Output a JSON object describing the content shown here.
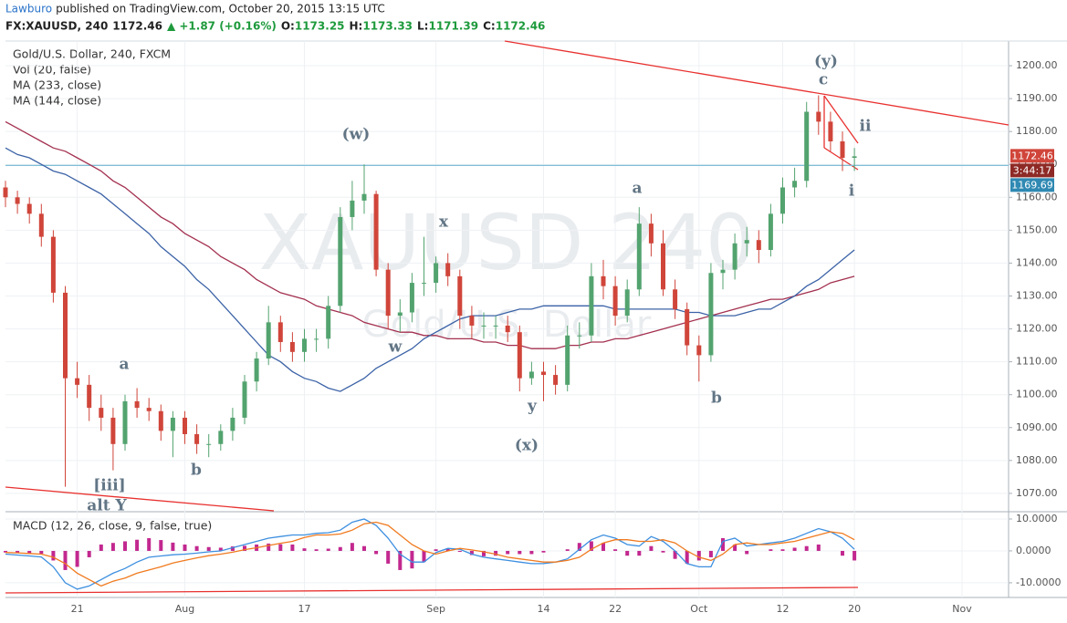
{
  "header": {
    "author": "Lawburo",
    "published": "published on TradingView.com, October 20, 2015 13:15 UTC",
    "symbol": "FX:XAUUSD, 240",
    "last": "1172.46",
    "change": "▲ +1.87 (+0.16%)",
    "ohlc": [
      {
        "label": "O:",
        "value": "1173.25"
      },
      {
        "label": "H:",
        "value": "1173.33"
      },
      {
        "label": "L:",
        "value": "1171.39"
      },
      {
        "label": "C:",
        "value": "1172.46"
      }
    ]
  },
  "chart_data": [
    {
      "type": "candlestick",
      "title": "Gold/U.S. Dollar, 240, FXCM",
      "volume_label": "Vol (20, false)",
      "watermark": [
        "XAUUSD 240",
        "Gold/U.S. Dollar"
      ],
      "categories": [
        null,
        null,
        null,
        null,
        null,
        null,
        "21",
        null,
        null,
        null,
        null,
        null,
        null,
        null,
        null,
        "Aug",
        null,
        null,
        null,
        null,
        null,
        null,
        null,
        null,
        null,
        "17",
        null,
        null,
        null,
        null,
        null,
        null,
        null,
        null,
        null,
        null,
        "Sep",
        null,
        null,
        null,
        null,
        null,
        null,
        null,
        null,
        "14",
        null,
        null,
        null,
        null,
        null,
        "22",
        null,
        null,
        null,
        null,
        null,
        null,
        "Oct",
        null,
        null,
        null,
        null,
        null,
        null,
        "12",
        null,
        null,
        null,
        null,
        null,
        "20",
        null,
        null,
        null,
        null,
        null,
        null,
        null,
        null,
        "Nov",
        null,
        null,
        null
      ],
      "open": [
        1163,
        1160,
        1158,
        1155,
        1148,
        1131,
        1105,
        1103,
        1096,
        1093,
        1085,
        1098,
        1096,
        1095,
        1089,
        1093,
        1088,
        1085,
        1085,
        1089,
        1093,
        1104,
        1111,
        1122,
        1116,
        1113,
        1117,
        1117,
        1127,
        1154,
        1159,
        1161,
        1138,
        1124,
        1125,
        1134,
        1134,
        1140,
        1136,
        1124,
        1121,
        1121,
        1121,
        1119,
        1105,
        1107,
        1106,
        1103,
        1118,
        1118,
        1136,
        1133,
        1124,
        1132,
        1152,
        1146,
        1132,
        1126,
        1115,
        1112,
        1137,
        1138,
        1146,
        1147,
        1144,
        1155,
        1163,
        1165,
        1186,
        1183,
        1177,
        1172,
        null,
        null,
        null,
        null,
        null,
        null,
        null,
        null,
        null,
        null,
        null,
        null
      ],
      "high": [
        1165,
        1162,
        1160,
        1158,
        1150,
        1133,
        1110,
        1106,
        1100,
        1096,
        1100,
        1102,
        1099,
        1097,
        1095,
        1095,
        1091,
        1088,
        1091,
        1096,
        1106,
        1113,
        1127,
        1124,
        1119,
        1120,
        1120,
        1130,
        1157,
        1165,
        1170,
        1162,
        1140,
        1129,
        1137,
        1148,
        1142,
        1143,
        1138,
        1127,
        1125,
        1124,
        1124,
        1121,
        1110,
        1110,
        1109,
        1121,
        1122,
        1140,
        1141,
        1136,
        1135,
        1157,
        1155,
        1150,
        1135,
        1128,
        1118,
        1140,
        1141,
        1149,
        1151,
        1150,
        1158,
        1166,
        1169,
        1189,
        1191,
        1186,
        1180,
        1175,
        null,
        null,
        null,
        null,
        null,
        null,
        null,
        null,
        null,
        null,
        null,
        null
      ],
      "low": [
        1157,
        1155,
        1152,
        1145,
        1128,
        1072,
        1099,
        1092,
        1089,
        1077,
        1083,
        1093,
        1092,
        1086,
        1081,
        1085,
        1082,
        1081,
        1083,
        1086,
        1091,
        1101,
        1109,
        1113,
        1110,
        1110,
        1113,
        1114,
        1125,
        1150,
        1155,
        1136,
        1120,
        1119,
        1122,
        1130,
        1131,
        1133,
        1120,
        1117,
        1117,
        1117,
        1116,
        1101,
        1103,
        1098,
        1100,
        1101,
        1114,
        1116,
        1129,
        1121,
        1122,
        1130,
        1142,
        1130,
        1123,
        1112,
        1104,
        1110,
        1132,
        1135,
        1142,
        1140,
        1142,
        1152,
        1160,
        1163,
        1179,
        1174,
        1168,
        1168,
        null,
        null,
        null,
        null,
        null,
        null,
        null,
        null,
        null,
        null,
        null,
        null
      ],
      "close": [
        1160,
        1158,
        1155,
        1148,
        1131,
        1105,
        1103,
        1096,
        1093,
        1085,
        1098,
        1096,
        1095,
        1089,
        1093,
        1088,
        1085,
        1085,
        1089,
        1093,
        1104,
        1111,
        1122,
        1116,
        1113,
        1117,
        1117,
        1127,
        1154,
        1159,
        1161,
        1138,
        1124,
        1125,
        1134,
        1134,
        1140,
        1136,
        1124,
        1121,
        1121,
        1121,
        1119,
        1105,
        1107,
        1106,
        1103,
        1118,
        1118,
        1136,
        1133,
        1124,
        1132,
        1152,
        1146,
        1132,
        1126,
        1115,
        1112,
        1137,
        1138,
        1146,
        1147,
        1144,
        1155,
        1163,
        1165,
        1186,
        1183,
        1177,
        1172,
        1172.46,
        null,
        null,
        null,
        null,
        null,
        null,
        null,
        null,
        null,
        null,
        null,
        null
      ],
      "up_color": "#53a36f",
      "down_color": "#d0453a",
      "series": [
        {
          "name": "MA (233, close)",
          "color": "#a3304f",
          "values": [
            1183,
            1181,
            1179,
            1177,
            1175,
            1174,
            1172,
            1170,
            1168,
            1165,
            1163,
            1160,
            1157,
            1154,
            1152,
            1149,
            1147,
            1145,
            1142,
            1140,
            1138,
            1135,
            1133,
            1131,
            1130,
            1129,
            1127,
            1126,
            1125,
            1124,
            1122,
            1121,
            1120,
            1119,
            1119,
            1118,
            1118,
            1117,
            1117,
            1117,
            1116,
            1116,
            1115,
            1115,
            1114,
            1114,
            1114,
            1115,
            1115,
            1116,
            1116,
            1117,
            1117,
            1118,
            1119,
            1120,
            1121,
            1122,
            1123,
            1124,
            1125,
            1126,
            1127,
            1128,
            1129,
            1129,
            1130,
            1131,
            1132,
            1134,
            1135,
            1136,
            null,
            null,
            null,
            null,
            null,
            null,
            null,
            null,
            null,
            null,
            null,
            null
          ]
        },
        {
          "name": "MA (144, close)",
          "color": "#3b62a6",
          "values": [
            1175,
            1173,
            1172,
            1170,
            1168,
            1167,
            1165,
            1163,
            1161,
            1158,
            1155,
            1152,
            1149,
            1145,
            1142,
            1139,
            1135,
            1132,
            1128,
            1124,
            1120,
            1116,
            1112,
            1110,
            1107,
            1105,
            1104,
            1102,
            1101,
            1103,
            1105,
            1108,
            1110,
            1112,
            1114,
            1117,
            1119,
            1121,
            1123,
            1124,
            1124,
            1124,
            1125,
            1126,
            1126,
            1127,
            1127,
            1127,
            1127,
            1127,
            1127,
            1126,
            1126,
            1126,
            1126,
            1126,
            1126,
            1125,
            1125,
            1124,
            1124,
            1124,
            1125,
            1126,
            1126,
            1128,
            1130,
            1133,
            1135,
            1138,
            1141,
            1144,
            null,
            null,
            null,
            null,
            null,
            null,
            null,
            null,
            null,
            null,
            null,
            null
          ]
        }
      ],
      "price_line": 1169.69,
      "price_line_color": "#7fbfd6",
      "last_price": 1172.46,
      "countdown": "3:44:17",
      "annotations": [
        "(y)",
        "c",
        "ii",
        "i",
        "(w)",
        "x",
        "a",
        "w",
        "y",
        "(x)",
        "b",
        "a",
        "b",
        "[iii]",
        "alt Y"
      ],
      "ylim": [
        1064.7,
        1207.5
      ],
      "yticks": [
        {
          "value": 1070,
          "label": "1070.00"
        },
        {
          "value": 1080,
          "label": "1080.00"
        },
        {
          "value": 1090,
          "label": "1090.00"
        },
        {
          "value": 1100,
          "label": "1100.00"
        },
        {
          "value": 1110,
          "label": "1110.00"
        },
        {
          "value": 1120,
          "label": "1120.00"
        },
        {
          "value": 1130,
          "label": "1130.00"
        },
        {
          "value": 1140,
          "label": "1140.00"
        },
        {
          "value": 1150,
          "label": "1150.00"
        },
        {
          "value": 1160,
          "label": "1160.00"
        },
        {
          "value": 1170,
          "label": "1170.00"
        },
        {
          "value": 1180,
          "label": "1180.00"
        },
        {
          "value": 1190,
          "label": "1190.00"
        },
        {
          "value": 1200,
          "label": "1200.00"
        }
      ],
      "grid": true
    },
    {
      "type": "macd",
      "title": "MACD (12, 26, close, 9, false, true)",
      "histogram": {
        "color": "#c2288f",
        "values": [
          -0.5,
          -0.7,
          -0.8,
          -0.9,
          -3,
          -6,
          -5,
          -2,
          2,
          2.5,
          3,
          3.5,
          4,
          3.4,
          2.6,
          2,
          1.5,
          1.2,
          1,
          1.4,
          1.6,
          2,
          2.3,
          2.1,
          2,
          0.8,
          0.5,
          0.7,
          1.2,
          2.5,
          1.5,
          -1,
          -4,
          -6,
          -5.5,
          -3.5,
          0.5,
          0.8,
          -0.3,
          -1.3,
          -1.7,
          -1.5,
          -1,
          -1,
          -1,
          -0.5,
          0,
          0.5,
          2.5,
          3,
          2.5,
          0.5,
          -1.5,
          -1.5,
          1.5,
          -0.5,
          -2.5,
          -4,
          -3,
          -2,
          4,
          2,
          -1,
          0,
          0.5,
          0.5,
          1,
          1.5,
          2,
          0,
          -1.5,
          -3,
          null,
          null,
          null,
          null,
          null,
          null,
          null,
          null,
          null,
          null,
          null,
          null
        ]
      },
      "lines": [
        {
          "color": "#3d8fe0",
          "values": [
            -1,
            -1.3,
            -1.6,
            -1.9,
            -5,
            -10,
            -12,
            -11,
            -9,
            -7,
            -5.5,
            -3.5,
            -2,
            -1.6,
            -1.2,
            -1,
            -0.7,
            -0.3,
            0,
            1,
            2,
            3,
            4,
            4.5,
            5,
            5,
            5.5,
            5.7,
            6.5,
            9,
            10,
            8,
            4,
            -1,
            -3.5,
            -3.5,
            -0.5,
            0.8,
            0.5,
            -1,
            -2,
            -2.5,
            -3,
            -3.5,
            -4,
            -4,
            -3.5,
            -2.5,
            0.5,
            3.5,
            5,
            4,
            2,
            1.5,
            4.5,
            3,
            0,
            -4,
            -5,
            -5,
            3,
            4,
            1.5,
            2,
            2.5,
            3,
            4,
            5.5,
            7,
            6,
            4,
            0.5,
            null,
            null,
            null,
            null,
            null,
            null,
            null,
            null,
            null,
            null,
            null,
            null
          ]
        },
        {
          "color": "#f07a1f",
          "values": [
            -0.5,
            -0.6,
            -0.8,
            -1,
            -2,
            -4,
            -7,
            -9,
            -11,
            -9.5,
            -8.5,
            -7,
            -6,
            -5,
            -3.8,
            -3,
            -2.2,
            -1.5,
            -1,
            -0.4,
            0.4,
            1,
            1.7,
            2.4,
            3,
            4.2,
            5,
            5,
            5.3,
            6.5,
            8.5,
            9,
            8,
            5,
            2,
            0,
            -1,
            0,
            0.8,
            0.3,
            -0.3,
            -1,
            -2,
            -2.5,
            -3,
            -3.5,
            -3.5,
            -3,
            -2,
            0.5,
            2.5,
            3.5,
            3.5,
            3,
            3,
            3.5,
            2.5,
            0,
            -2,
            -3,
            -1,
            2,
            2.5,
            2,
            2,
            2.5,
            3,
            4,
            5,
            6,
            5.5,
            3.5,
            null,
            null,
            null,
            null,
            null,
            null,
            null,
            null,
            null,
            null,
            null,
            null
          ]
        }
      ],
      "ylim": [
        -14.6,
        12
      ],
      "yticks": [
        {
          "value": -10,
          "label": "-10.0000"
        },
        {
          "value": 0,
          "label": "0.0000"
        },
        {
          "value": 10,
          "label": "10.0000"
        }
      ]
    }
  ]
}
